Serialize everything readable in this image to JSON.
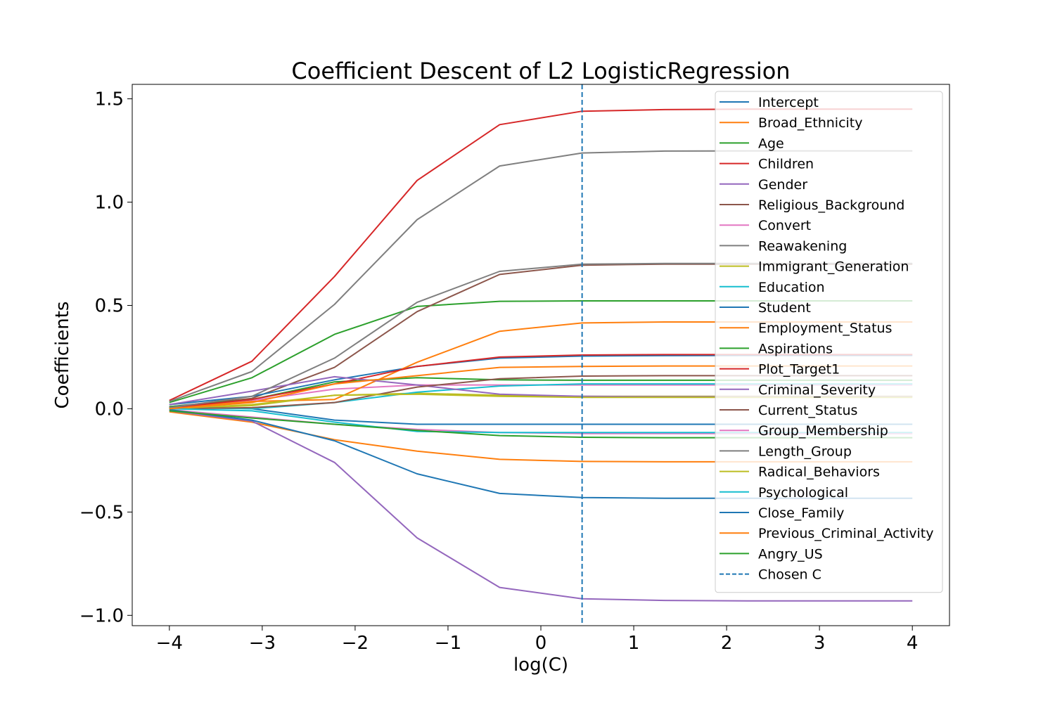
{
  "chart_data": {
    "type": "line",
    "title": "Coefficient Descent of L2 LogisticRegression",
    "xlabel": "log(C)",
    "ylabel": "Coefficients",
    "xlim": [
      -4.4,
      4.4
    ],
    "ylim": [
      -1.05,
      1.57
    ],
    "x_ticks": [
      -4,
      -3,
      -2,
      -1,
      0,
      1,
      2,
      3,
      4
    ],
    "x_tick_labels": [
      "−4",
      "−3",
      "−2",
      "−1",
      "0",
      "1",
      "2",
      "3",
      "4"
    ],
    "y_ticks": [
      -1.0,
      -0.5,
      0.0,
      0.5,
      1.0,
      1.5
    ],
    "y_tick_labels": [
      "−1.0",
      "−0.5",
      "0.0",
      "0.5",
      "1.0",
      "1.5"
    ],
    "grid": false,
    "legend_position": "top-right",
    "x": [
      -4.0,
      -3.111,
      -2.222,
      -1.333,
      -0.444,
      0.444,
      1.333,
      2.222,
      3.111,
      4.0
    ],
    "series": [
      {
        "name": "Intercept",
        "color": "#1f77b4",
        "values": [
          0.01,
          0.0,
          -0.055,
          -0.075,
          -0.075,
          -0.075,
          -0.075,
          -0.075,
          -0.075,
          -0.075
        ]
      },
      {
        "name": "Broad_Ethnicity",
        "color": "#ff7f0e",
        "values": [
          -0.015,
          -0.065,
          -0.15,
          -0.205,
          -0.245,
          -0.255,
          -0.257,
          -0.257,
          -0.257,
          -0.257
        ]
      },
      {
        "name": "Age",
        "color": "#2ca02c",
        "values": [
          0.03,
          0.15,
          0.36,
          0.495,
          0.52,
          0.522,
          0.522,
          0.522,
          0.522,
          0.522
        ]
      },
      {
        "name": "Children",
        "color": "#d62728",
        "values": [
          0.04,
          0.23,
          0.64,
          1.105,
          1.375,
          1.44,
          1.448,
          1.45,
          1.45,
          1.45
        ]
      },
      {
        "name": "Gender",
        "color": "#9467bd",
        "values": [
          -0.01,
          -0.06,
          -0.26,
          -0.625,
          -0.865,
          -0.92,
          -0.928,
          -0.93,
          -0.93,
          -0.93
        ]
      },
      {
        "name": "Religious_Background",
        "color": "#8c564b",
        "values": [
          0.01,
          0.05,
          0.2,
          0.47,
          0.65,
          0.695,
          0.7,
          0.7,
          0.7,
          0.7
        ]
      },
      {
        "name": "Convert",
        "color": "#e377c2",
        "values": [
          0.005,
          0.04,
          0.095,
          0.115,
          0.115,
          0.115,
          0.115,
          0.115,
          0.115,
          0.115
        ]
      },
      {
        "name": "Reawakening",
        "color": "#7f7f7f",
        "values": [
          0.035,
          0.18,
          0.505,
          0.915,
          1.175,
          1.238,
          1.247,
          1.248,
          1.248,
          1.248
        ]
      },
      {
        "name": "Immigrant_Generation",
        "color": "#bcbd22",
        "values": [
          0.0,
          0.015,
          0.065,
          0.075,
          0.065,
          0.06,
          0.06,
          0.06,
          0.06,
          0.06
        ]
      },
      {
        "name": "Education",
        "color": "#17becf",
        "values": [
          0.005,
          0.0,
          0.03,
          0.08,
          0.11,
          0.12,
          0.12,
          0.12,
          0.12,
          0.12
        ]
      },
      {
        "name": "Student",
        "color": "#1f77b4",
        "values": [
          0.02,
          0.06,
          0.14,
          0.205,
          0.245,
          0.255,
          0.257,
          0.258,
          0.258,
          0.258
        ]
      },
      {
        "name": "Employment_Status",
        "color": "#ff7f0e",
        "values": [
          0.005,
          0.035,
          0.045,
          0.225,
          0.375,
          0.415,
          0.42,
          0.42,
          0.42,
          0.42
        ]
      },
      {
        "name": "Aspirations",
        "color": "#2ca02c",
        "values": [
          0.01,
          0.045,
          0.13,
          0.15,
          0.14,
          0.138,
          0.138,
          0.138,
          0.138,
          0.138
        ]
      },
      {
        "name": "Plot_Target1",
        "color": "#d62728",
        "values": [
          0.005,
          0.045,
          0.12,
          0.205,
          0.25,
          0.26,
          0.262,
          0.262,
          0.262,
          0.262
        ]
      },
      {
        "name": "Criminal_Severity",
        "color": "#9467bd",
        "values": [
          0.02,
          0.085,
          0.155,
          0.115,
          0.07,
          0.06,
          0.058,
          0.058,
          0.058,
          0.058
        ]
      },
      {
        "name": "Current_Status",
        "color": "#8c564b",
        "values": [
          0.0,
          0.005,
          0.03,
          0.105,
          0.145,
          0.158,
          0.16,
          0.16,
          0.16,
          0.16
        ]
      },
      {
        "name": "Group_Membership",
        "color": "#e377c2",
        "values": [
          -0.005,
          -0.04,
          -0.075,
          -0.1,
          -0.115,
          -0.12,
          -0.12,
          -0.12,
          -0.12,
          -0.12
        ]
      },
      {
        "name": "Length_Group",
        "color": "#7f7f7f",
        "values": [
          0.005,
          0.06,
          0.245,
          0.515,
          0.665,
          0.7,
          0.703,
          0.703,
          0.703,
          0.703
        ]
      },
      {
        "name": "Radical_Behaviors",
        "color": "#bcbd22",
        "values": [
          0.0,
          0.02,
          0.065,
          0.07,
          0.06,
          0.055,
          0.055,
          0.055,
          0.055,
          0.055
        ]
      },
      {
        "name": "Psychological",
        "color": "#17becf",
        "values": [
          0.0,
          -0.01,
          -0.065,
          -0.11,
          -0.115,
          -0.115,
          -0.115,
          -0.115,
          -0.115,
          -0.115
        ]
      },
      {
        "name": "Close_Family",
        "color": "#1f77b4",
        "values": [
          -0.005,
          -0.055,
          -0.155,
          -0.315,
          -0.41,
          -0.43,
          -0.433,
          -0.433,
          -0.433,
          -0.433
        ]
      },
      {
        "name": "Previous_Criminal_Activity",
        "color": "#ff7f0e",
        "values": [
          0.0,
          0.03,
          0.12,
          0.16,
          0.2,
          0.205,
          0.207,
          0.207,
          0.207,
          0.207
        ]
      },
      {
        "name": "Angry_US",
        "color": "#2ca02c",
        "values": [
          -0.01,
          -0.045,
          -0.075,
          -0.105,
          -0.13,
          -0.138,
          -0.14,
          -0.14,
          -0.14,
          -0.14
        ]
      }
    ],
    "vline": {
      "name": "Chosen C",
      "x": 0.444,
      "color": "#1f77b4",
      "style": "dashed"
    }
  }
}
